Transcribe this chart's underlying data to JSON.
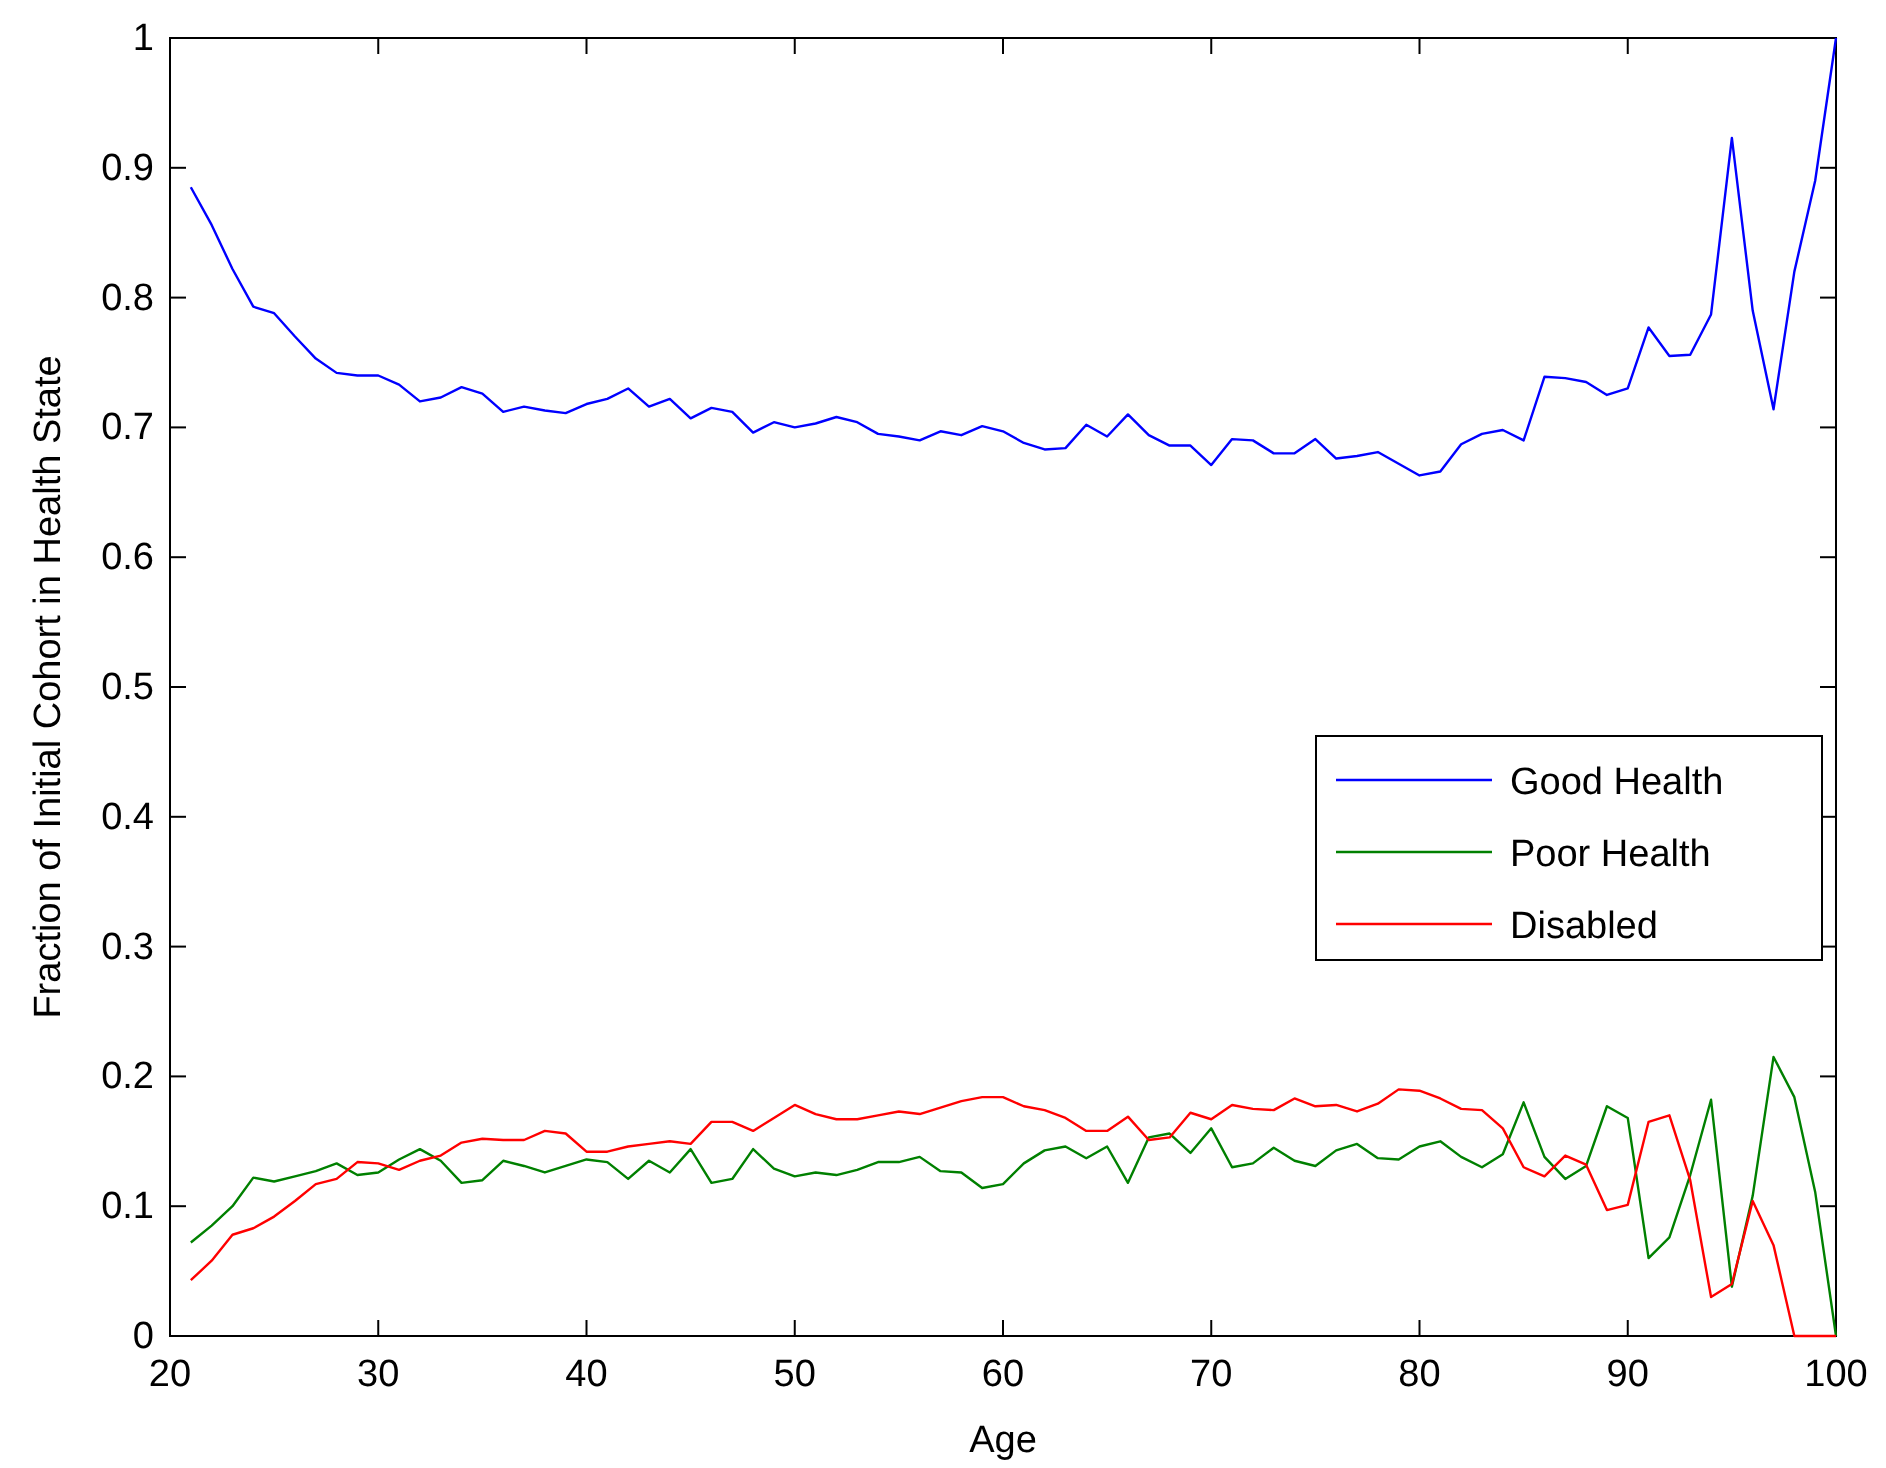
{
  "chart_data": {
    "type": "line",
    "xlabel": "Age",
    "ylabel": "Fraction of Initial Cohort in Health State",
    "x": [
      21,
      22,
      23,
      24,
      25,
      26,
      27,
      28,
      29,
      30,
      31,
      32,
      33,
      34,
      35,
      36,
      37,
      38,
      39,
      40,
      41,
      42,
      43,
      44,
      45,
      46,
      47,
      48,
      49,
      50,
      51,
      52,
      53,
      54,
      55,
      56,
      57,
      58,
      59,
      60,
      61,
      62,
      63,
      64,
      65,
      66,
      67,
      68,
      69,
      70,
      71,
      72,
      73,
      74,
      75,
      76,
      77,
      78,
      79,
      80,
      81,
      82,
      83,
      84,
      85,
      86,
      87,
      88,
      89,
      90,
      91,
      92,
      93,
      94,
      95,
      96,
      97,
      98,
      99,
      100
    ],
    "series": [
      {
        "name": "Good Health",
        "color": "#0000ff",
        "values": [
          0.885,
          0.856,
          0.822,
          0.793,
          0.788,
          0.77,
          0.753,
          0.742,
          0.74,
          0.74,
          0.733,
          0.72,
          0.723,
          0.731,
          0.726,
          0.712,
          0.716,
          0.713,
          0.711,
          0.718,
          0.722,
          0.73,
          0.716,
          0.722,
          0.707,
          0.715,
          0.712,
          0.696,
          0.704,
          0.7,
          0.703,
          0.708,
          0.704,
          0.695,
          0.693,
          0.69,
          0.697,
          0.694,
          0.701,
          0.697,
          0.688,
          0.683,
          0.684,
          0.702,
          0.693,
          0.71,
          0.694,
          0.686,
          0.686,
          0.671,
          0.691,
          0.69,
          0.68,
          0.68,
          0.691,
          0.676,
          0.678,
          0.681,
          0.672,
          0.663,
          0.666,
          0.687,
          0.695,
          0.698,
          0.69,
          0.739,
          0.738,
          0.735,
          0.725,
          0.73,
          0.777,
          0.755,
          0.756,
          0.787,
          0.923,
          0.79,
          0.714,
          0.82,
          0.89,
          1.0
        ]
      },
      {
        "name": "Poor Health",
        "color": "#008000",
        "values": [
          0.072,
          0.085,
          0.1,
          0.122,
          0.119,
          0.123,
          0.127,
          0.133,
          0.124,
          0.126,
          0.136,
          0.144,
          0.135,
          0.118,
          0.12,
          0.135,
          0.131,
          0.126,
          0.131,
          0.136,
          0.134,
          0.121,
          0.135,
          0.126,
          0.144,
          0.118,
          0.121,
          0.144,
          0.129,
          0.123,
          0.126,
          0.124,
          0.128,
          0.134,
          0.134,
          0.138,
          0.127,
          0.126,
          0.114,
          0.117,
          0.133,
          0.143,
          0.146,
          0.137,
          0.146,
          0.118,
          0.153,
          0.156,
          0.141,
          0.16,
          0.13,
          0.133,
          0.145,
          0.135,
          0.131,
          0.143,
          0.148,
          0.137,
          0.136,
          0.146,
          0.15,
          0.138,
          0.13,
          0.14,
          0.18,
          0.138,
          0.121,
          0.131,
          0.177,
          0.168,
          0.06,
          0.076,
          0.124,
          0.182,
          0.038,
          0.108,
          0.215,
          0.184,
          0.111,
          0.0
        ]
      },
      {
        "name": "Disabled",
        "color": "#ff0000",
        "values": [
          0.043,
          0.058,
          0.078,
          0.083,
          0.092,
          0.104,
          0.117,
          0.121,
          0.134,
          0.133,
          0.128,
          0.135,
          0.139,
          0.149,
          0.152,
          0.151,
          0.151,
          0.158,
          0.156,
          0.142,
          0.142,
          0.146,
          0.148,
          0.15,
          0.148,
          0.165,
          0.165,
          0.158,
          0.168,
          0.178,
          0.171,
          0.167,
          0.167,
          0.17,
          0.173,
          0.171,
          0.176,
          0.181,
          0.184,
          0.184,
          0.177,
          0.174,
          0.168,
          0.158,
          0.158,
          0.169,
          0.151,
          0.153,
          0.172,
          0.167,
          0.178,
          0.175,
          0.174,
          0.183,
          0.177,
          0.178,
          0.173,
          0.179,
          0.19,
          0.189,
          0.183,
          0.175,
          0.174,
          0.16,
          0.13,
          0.123,
          0.139,
          0.132,
          0.097,
          0.101,
          0.165,
          0.17,
          0.12,
          0.03,
          0.04,
          0.104,
          0.07,
          0.0,
          0.0,
          0.0
        ]
      }
    ],
    "xlim": [
      20,
      100
    ],
    "xticks": [
      20,
      30,
      40,
      50,
      60,
      70,
      80,
      90,
      100
    ],
    "ylim": [
      0,
      1
    ],
    "yticks": [
      0,
      0.1,
      0.2,
      0.3,
      0.4,
      0.5,
      0.6,
      0.7,
      0.8,
      0.9,
      1
    ],
    "grid": false,
    "legend": "right",
    "line_style": "solid",
    "marker": "none"
  }
}
